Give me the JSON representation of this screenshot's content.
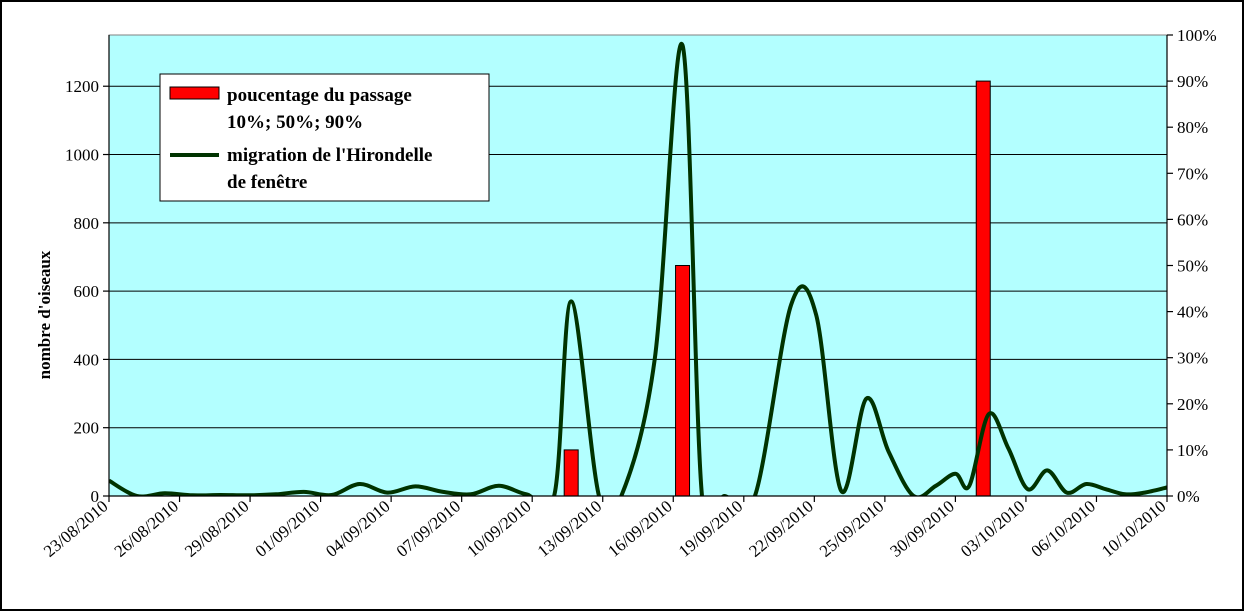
{
  "chart_data": {
    "type": "bar+line",
    "title": "",
    "xlabel": "",
    "ylabel": "nombre d'oiseaux",
    "y2label": "",
    "ylim": [
      0,
      1350
    ],
    "y2lim": [
      0,
      1.0
    ],
    "yticks": [
      "0",
      "200",
      "400",
      "600",
      "800",
      "1000",
      "1200"
    ],
    "y2ticks": [
      "0%",
      "10%",
      "20%",
      "30%",
      "40%",
      "50%",
      "60%",
      "70%",
      "80%",
      "90%",
      "100%"
    ],
    "categories": [
      "23/08/2010",
      "26/08/2010",
      "29/08/2010",
      "01/09/2010",
      "04/09/2010",
      "07/09/2010",
      "10/09/2010",
      "13/09/2010",
      "16/09/2010",
      "19/09/2010",
      "22/09/2010",
      "25/09/2010",
      "30/09/2010",
      "03/10/2010",
      "06/10/2010",
      "10/10/2010"
    ],
    "grid": true,
    "legend_position": "top-left",
    "colors": {
      "plot_background": "#b3ffff",
      "bar_fill": "#ff0000",
      "line": "#003300"
    },
    "series": [
      {
        "name": "poucentage du passage 10%; 50%; 90%",
        "type": "bar",
        "axis": "right",
        "legend_lines": [
          "poucentage du passage",
          "10%; 50%; 90%"
        ],
        "points": [
          {
            "x": 16.6,
            "y": 0.1
          },
          {
            "x": 20.6,
            "y": 0.5
          },
          {
            "x": 31.4,
            "y": 0.9
          }
        ]
      },
      {
        "name": "migration de l'Hirondelle de fenêtre",
        "type": "line",
        "axis": "left",
        "legend_lines": [
          "migration de l'Hirondelle",
          "de fenêtre"
        ],
        "points": [
          {
            "x": 0,
            "y": 45
          },
          {
            "x": 1,
            "y": 0
          },
          {
            "x": 2,
            "y": 8
          },
          {
            "x": 3,
            "y": 2
          },
          {
            "x": 4,
            "y": 3
          },
          {
            "x": 5,
            "y": 2
          },
          {
            "x": 6,
            "y": 5
          },
          {
            "x": 7,
            "y": 12
          },
          {
            "x": 8,
            "y": 3
          },
          {
            "x": 9,
            "y": 35
          },
          {
            "x": 10,
            "y": 10
          },
          {
            "x": 11,
            "y": 28
          },
          {
            "x": 12,
            "y": 12
          },
          {
            "x": 13,
            "y": 5
          },
          {
            "x": 14,
            "y": 30
          },
          {
            "x": 15,
            "y": 5
          },
          {
            "x": 16,
            "y": 5
          },
          {
            "x": 16.6,
            "y": 570
          },
          {
            "x": 17.6,
            "y": 0
          },
          {
            "x": 18.4,
            "y": 0
          },
          {
            "x": 19.6,
            "y": 400
          },
          {
            "x": 20.6,
            "y": 1320
          },
          {
            "x": 21.3,
            "y": 0
          },
          {
            "x": 22.1,
            "y": 0
          },
          {
            "x": 23.2,
            "y": 0
          },
          {
            "x": 24.5,
            "y": 560
          },
          {
            "x": 25.4,
            "y": 530
          },
          {
            "x": 26.3,
            "y": 15
          },
          {
            "x": 27.2,
            "y": 285
          },
          {
            "x": 28,
            "y": 130
          },
          {
            "x": 28.9,
            "y": 0
          },
          {
            "x": 29.7,
            "y": 30
          },
          {
            "x": 30.4,
            "y": 65
          },
          {
            "x": 30.9,
            "y": 30
          },
          {
            "x": 31.6,
            "y": 240
          },
          {
            "x": 32.3,
            "y": 140
          },
          {
            "x": 33,
            "y": 20
          },
          {
            "x": 33.7,
            "y": 75
          },
          {
            "x": 34.4,
            "y": 10
          },
          {
            "x": 35.1,
            "y": 35
          },
          {
            "x": 35.8,
            "y": 20
          },
          {
            "x": 36.5,
            "y": 5
          },
          {
            "x": 37.2,
            "y": 10
          },
          {
            "x": 38,
            "y": 25
          }
        ]
      }
    ]
  }
}
